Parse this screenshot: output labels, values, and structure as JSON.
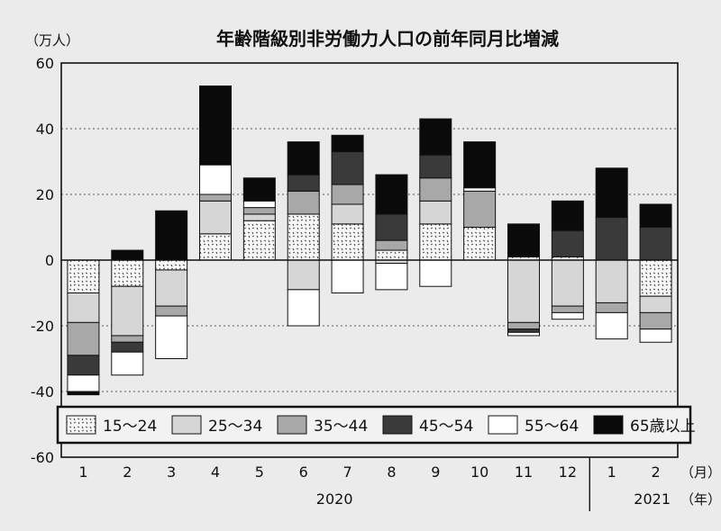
{
  "chart_data": {
    "type": "bar",
    "stacked": true,
    "title": "年齢階級別非労働力人口の前年同月比増減",
    "ylabel": "（万人）",
    "ylim": [
      -60,
      60
    ],
    "yticks": [
      60,
      40,
      20,
      0,
      -20,
      -40,
      -60
    ],
    "grid": "dotted horizontal",
    "categories": [
      "1",
      "2",
      "3",
      "4",
      "5",
      "6",
      "7",
      "8",
      "9",
      "10",
      "11",
      "12",
      "1",
      "2"
    ],
    "x_unit": "（月）",
    "year_unit": "（年）",
    "year_groups": [
      {
        "label": "2020",
        "months": 12
      },
      {
        "label": "2021",
        "months": 2
      }
    ],
    "legend_position": "bottom-inside",
    "colors": {
      "15-24": "#f4f4f4",
      "25-34": "#d6d6d6",
      "35-44": "#a8a8a8",
      "45-54": "#3a3a3a",
      "55-64": "#ffffff",
      "65+": "#0a0a0a"
    },
    "series": [
      {
        "name": "15～24",
        "key": "15-24",
        "pattern": "dots",
        "values": [
          -10,
          -8,
          -3,
          8,
          12,
          14,
          11,
          3,
          11,
          10,
          1,
          1,
          0,
          -11
        ]
      },
      {
        "name": "25～34",
        "key": "25-34",
        "values": [
          -9,
          -15,
          -11,
          10,
          2,
          -9,
          6,
          -1,
          7,
          0,
          -19,
          -14,
          -13,
          -5
        ]
      },
      {
        "name": "35～44",
        "key": "35-44",
        "values": [
          -10,
          -2,
          -3,
          2,
          2,
          7,
          6,
          3,
          7,
          11,
          -2,
          -2,
          -3,
          -5
        ]
      },
      {
        "name": "45～54",
        "key": "45-54",
        "values": [
          -6,
          -3,
          0,
          0,
          0,
          5,
          10,
          8,
          7,
          0,
          -1,
          8,
          13,
          10
        ]
      },
      {
        "name": "55～64",
        "key": "55-64",
        "values": [
          -5,
          -7,
          -13,
          9,
          2,
          -11,
          -10,
          -8,
          -8,
          1,
          -1,
          -2,
          -8,
          -4
        ]
      },
      {
        "name": "65歳以上",
        "key": "65+",
        "values": [
          -1,
          3,
          15,
          24,
          7,
          10,
          5,
          12,
          11,
          14,
          10,
          9,
          15,
          7
        ]
      }
    ]
  }
}
